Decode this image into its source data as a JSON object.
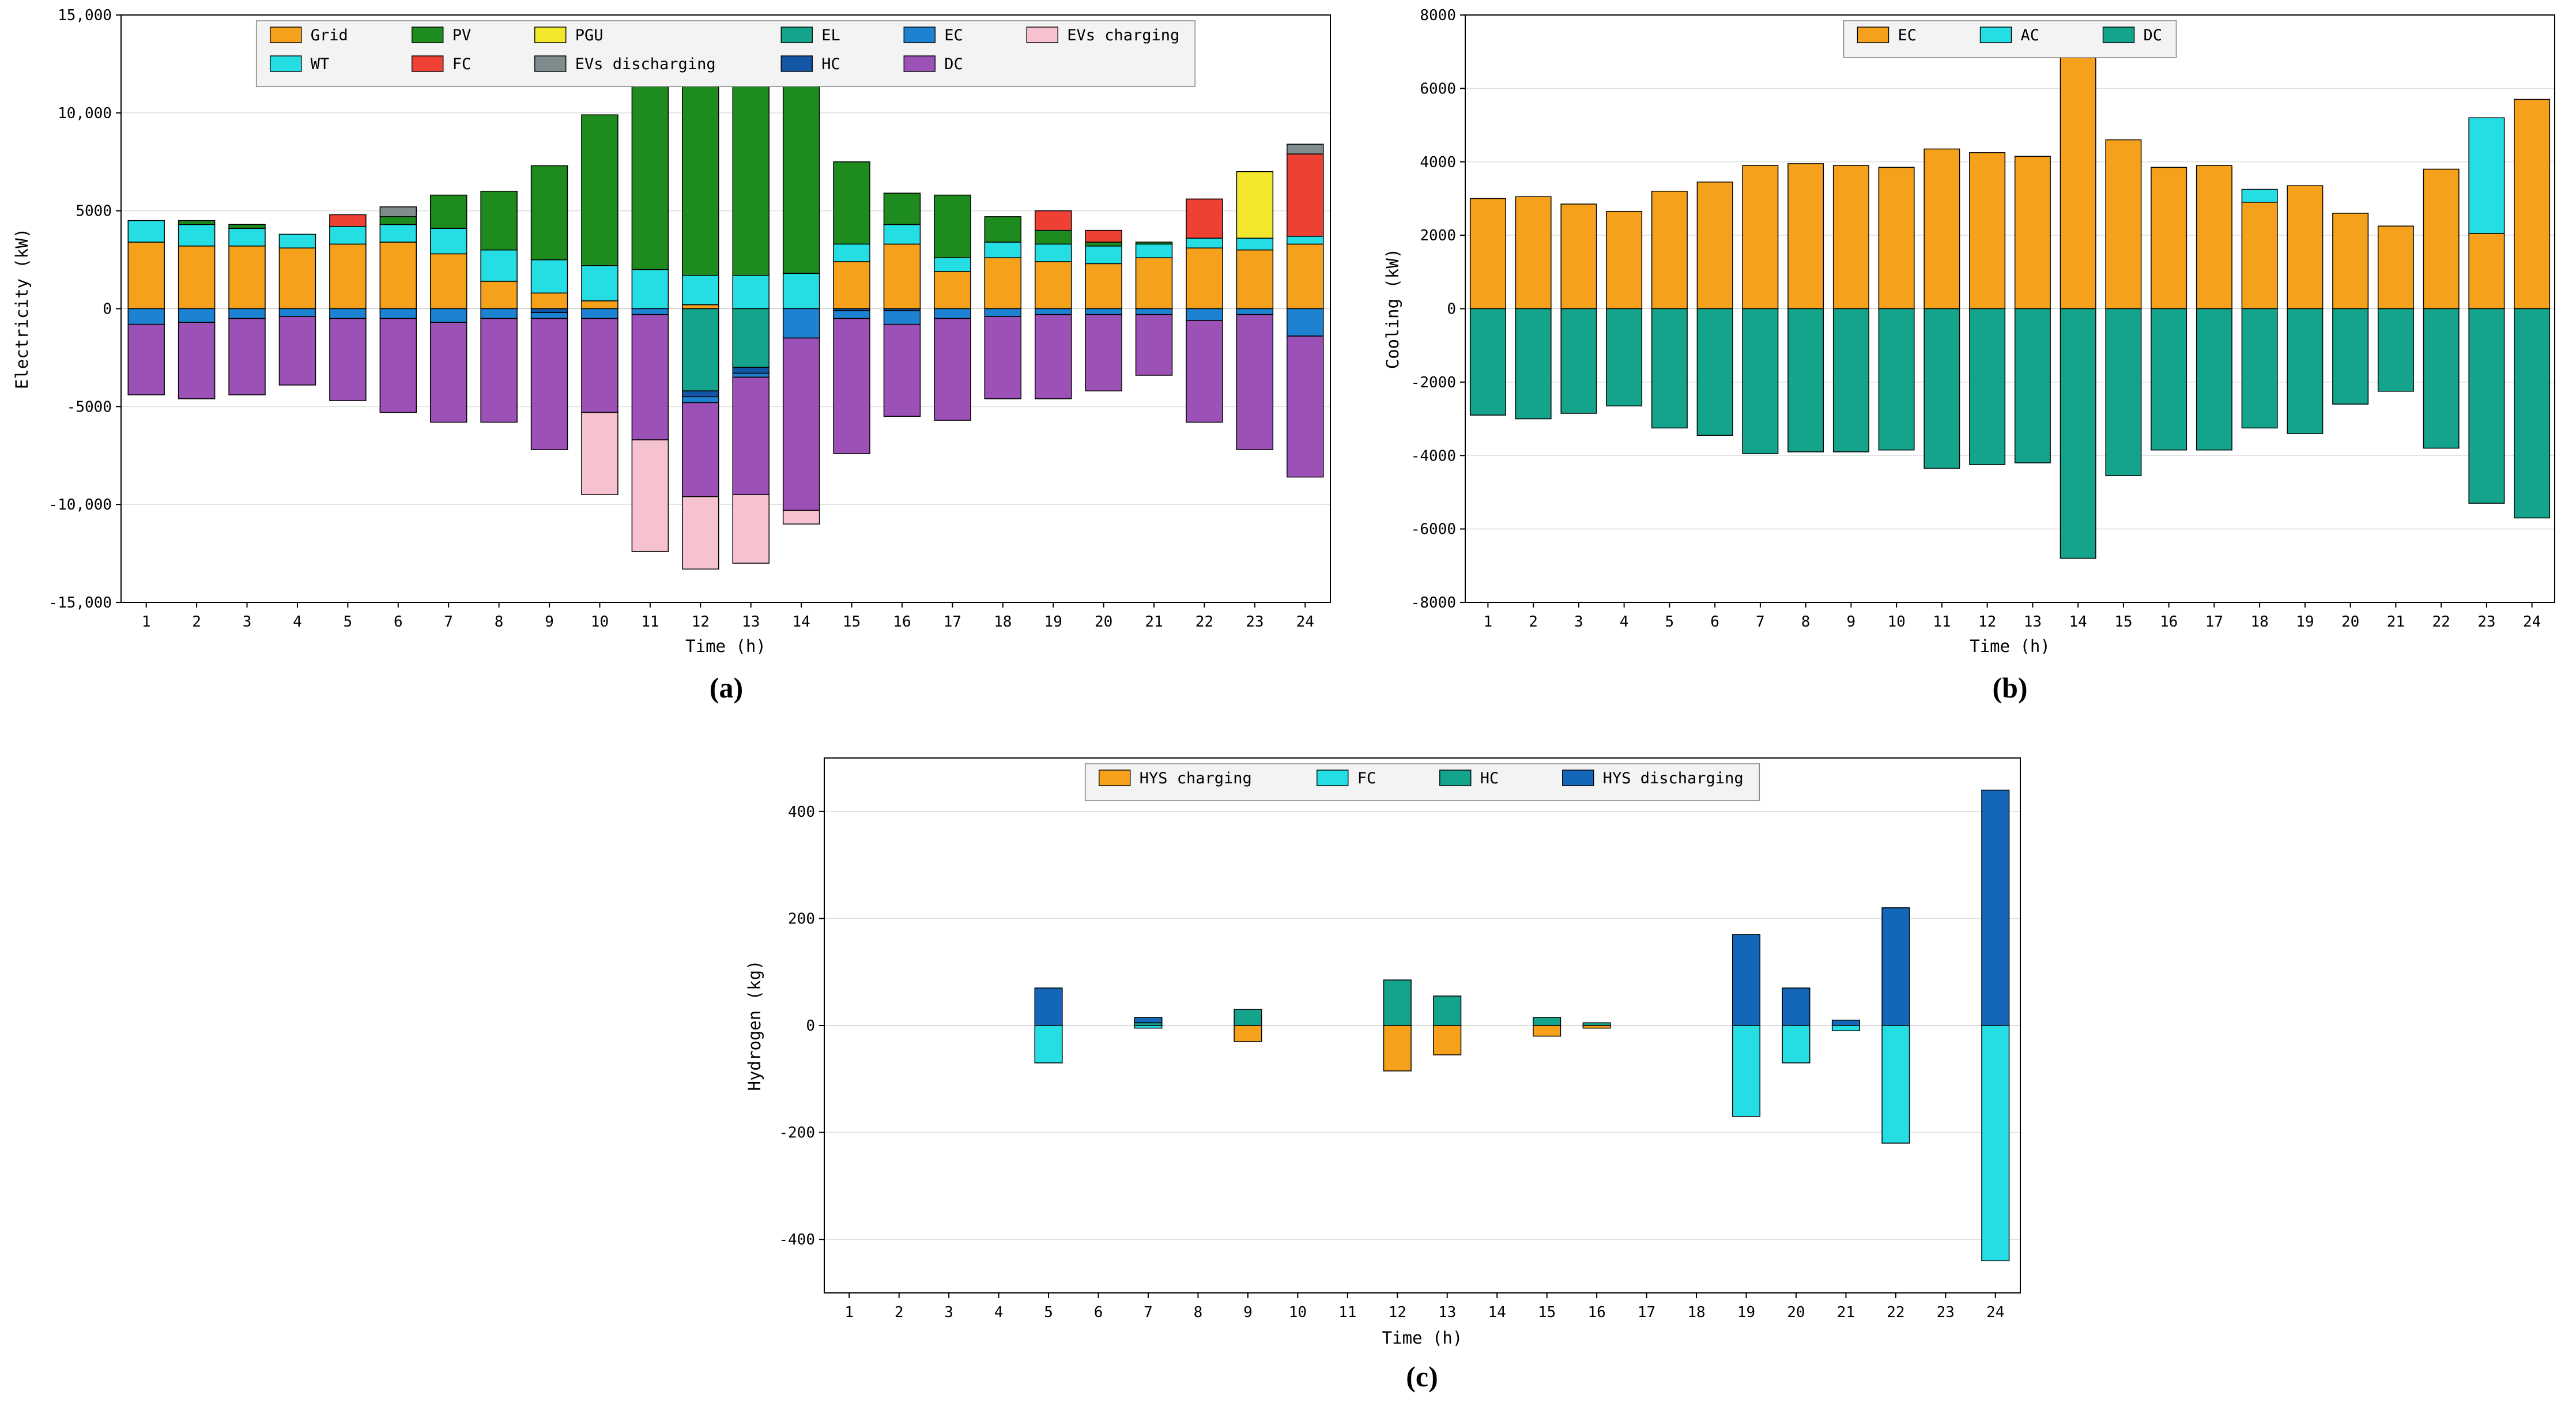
{
  "page": {
    "background": "#FFFFFF",
    "panel_labels": {
      "a": "(a)",
      "b": "(b)",
      "c": "(c)"
    }
  },
  "chart_data": [
    {
      "id": "a",
      "type": "bar",
      "stacked": true,
      "title": "",
      "xlabel": "Time (h)",
      "ylabel": "Electricity (kW)",
      "ylim": [
        -15000,
        15000
      ],
      "grid": true,
      "legend_position": "top-center-inside",
      "yticks": [
        {
          "v": -15000,
          "label": "-15,000"
        },
        {
          "v": -10000,
          "label": "-10,000"
        },
        {
          "v": -5000,
          "label": "-5000"
        },
        {
          "v": 0,
          "label": "0"
        },
        {
          "v": 5000,
          "label": "5000"
        },
        {
          "v": 10000,
          "label": "10,000"
        },
        {
          "v": 15000,
          "label": "15,000"
        }
      ],
      "categories": [
        1,
        2,
        3,
        4,
        5,
        6,
        7,
        8,
        9,
        10,
        11,
        12,
        13,
        14,
        15,
        16,
        17,
        18,
        19,
        20,
        21,
        22,
        23,
        24
      ],
      "legend_rows": [
        [
          "Grid",
          "PV",
          "PGU",
          "EL",
          "EC",
          "EVs charging"
        ],
        [
          "WT",
          "FC",
          "EVs discharging",
          "HC",
          "DC"
        ]
      ],
      "series": [
        {
          "name": "Grid",
          "color": "#F5A11B",
          "values": [
            3400,
            3200,
            3200,
            3100,
            3300,
            3400,
            2800,
            1400,
            800,
            400,
            0,
            200,
            0,
            0,
            2400,
            3300,
            1900,
            2600,
            2400,
            2300,
            2600,
            3100,
            3000,
            3300
          ]
        },
        {
          "name": "WT",
          "color": "#25DEE4",
          "values": [
            1100,
            1100,
            900,
            700,
            900,
            900,
            1300,
            1600,
            1700,
            1800,
            2000,
            1500,
            1700,
            1800,
            900,
            1000,
            700,
            800,
            900,
            900,
            700,
            500,
            600,
            400
          ]
        },
        {
          "name": "PV",
          "color": "#1D8B1D",
          "values": [
            0,
            200,
            200,
            0,
            0,
            400,
            1700,
            3000,
            4800,
            7700,
            10300,
            11700,
            11400,
            9900,
            4200,
            1600,
            3200,
            1300,
            700,
            200,
            100,
            0,
            0,
            0
          ]
        },
        {
          "name": "FC",
          "color": "#EF4034",
          "values": [
            0,
            0,
            0,
            0,
            600,
            0,
            0,
            0,
            0,
            0,
            0,
            0,
            0,
            0,
            0,
            0,
            0,
            0,
            1000,
            600,
            0,
            2000,
            0,
            4200
          ]
        },
        {
          "name": "PGU",
          "color": "#F2E72C",
          "values": [
            0,
            0,
            0,
            0,
            0,
            0,
            0,
            0,
            0,
            0,
            0,
            0,
            0,
            0,
            0,
            0,
            0,
            0,
            0,
            0,
            0,
            0,
            3400,
            0
          ]
        },
        {
          "name": "EVs discharging",
          "color": "#7E8C8D",
          "values": [
            0,
            0,
            0,
            0,
            0,
            500,
            0,
            0,
            0,
            0,
            0,
            0,
            0,
            0,
            0,
            0,
            0,
            0,
            0,
            0,
            0,
            0,
            0,
            500
          ]
        },
        {
          "name": "EL",
          "color": "#14A38B",
          "values": [
            0,
            0,
            0,
            0,
            0,
            0,
            0,
            0,
            0,
            0,
            0,
            -4200,
            -3000,
            0,
            0,
            0,
            0,
            0,
            0,
            0,
            0,
            0,
            0,
            0
          ]
        },
        {
          "name": "HC",
          "color": "#1356A6",
          "values": [
            0,
            0,
            0,
            0,
            0,
            0,
            0,
            0,
            -200,
            0,
            0,
            -300,
            -300,
            0,
            -100,
            -100,
            0,
            0,
            0,
            0,
            0,
            0,
            0,
            0
          ]
        },
        {
          "name": "EC",
          "color": "#1E82D2",
          "values": [
            -800,
            -700,
            -500,
            -400,
            -500,
            -500,
            -700,
            -500,
            -300,
            -500,
            -300,
            -300,
            -200,
            -1500,
            -400,
            -700,
            -500,
            -400,
            -300,
            -300,
            -300,
            -600,
            -300,
            -1400
          ]
        },
        {
          "name": "DC",
          "color": "#9C51B6",
          "values": [
            -3600,
            -3900,
            -3900,
            -3500,
            -4200,
            -4800,
            -5100,
            -5300,
            -6700,
            -4800,
            -6400,
            -4800,
            -6000,
            -8800,
            -6900,
            -4700,
            -5200,
            -4200,
            -4300,
            -3900,
            -3100,
            -5200,
            -6900,
            -7200
          ]
        },
        {
          "name": "EVs charging",
          "color": "#F7C2CF",
          "values": [
            0,
            0,
            0,
            0,
            0,
            0,
            0,
            0,
            0,
            -4200,
            -5700,
            -3700,
            -3500,
            -700,
            0,
            0,
            0,
            0,
            0,
            0,
            0,
            0,
            0,
            0
          ]
        }
      ]
    },
    {
      "id": "b",
      "type": "bar",
      "stacked": true,
      "title": "",
      "xlabel": "Time (h)",
      "ylabel": "Cooling (kW)",
      "ylim": [
        -8000,
        8000
      ],
      "grid": true,
      "legend_position": "top-center-inside",
      "yticks": [
        {
          "v": -8000,
          "label": "-8000"
        },
        {
          "v": -6000,
          "label": "-6000"
        },
        {
          "v": -4000,
          "label": "-4000"
        },
        {
          "v": -2000,
          "label": "-2000"
        },
        {
          "v": 0,
          "label": "0"
        },
        {
          "v": 2000,
          "label": "2000"
        },
        {
          "v": 4000,
          "label": "4000"
        },
        {
          "v": 6000,
          "label": "6000"
        },
        {
          "v": 8000,
          "label": "8000"
        }
      ],
      "categories": [
        1,
        2,
        3,
        4,
        5,
        6,
        7,
        8,
        9,
        10,
        11,
        12,
        13,
        14,
        15,
        16,
        17,
        18,
        19,
        20,
        21,
        22,
        23,
        24
      ],
      "legend_rows": [
        [
          "EC",
          "AC",
          "DC"
        ]
      ],
      "series": [
        {
          "name": "EC",
          "color": "#F5A11B",
          "values": [
            3000,
            3050,
            2850,
            2650,
            3200,
            3450,
            3900,
            3950,
            3900,
            3850,
            4350,
            4250,
            4150,
            6850,
            4600,
            3850,
            3900,
            2900,
            3350,
            2600,
            2250,
            3800,
            2050,
            5700
          ]
        },
        {
          "name": "AC",
          "color": "#25DEE4",
          "values": [
            0,
            0,
            0,
            0,
            0,
            0,
            0,
            0,
            0,
            0,
            0,
            0,
            0,
            0,
            0,
            0,
            0,
            350,
            0,
            0,
            0,
            0,
            3150,
            0
          ]
        },
        {
          "name": "DC",
          "color": "#14A38B",
          "values": [
            -2900,
            -3000,
            -2850,
            -2650,
            -3250,
            -3450,
            -3950,
            -3900,
            -3900,
            -3850,
            -4350,
            -4250,
            -4200,
            -6800,
            -4550,
            -3850,
            -3850,
            -3250,
            -3400,
            -2600,
            -2250,
            -3800,
            -5300,
            -5700
          ]
        }
      ]
    },
    {
      "id": "c",
      "type": "bar",
      "stacked": true,
      "title": "",
      "xlabel": "Time (h)",
      "ylabel": "Hydrogen (kg)",
      "ylim": [
        -500,
        500
      ],
      "grid": true,
      "legend_position": "top-center-inside",
      "yticks": [
        {
          "v": -400,
          "label": "-400"
        },
        {
          "v": -200,
          "label": "-200"
        },
        {
          "v": 0,
          "label": "0"
        },
        {
          "v": 200,
          "label": "200"
        },
        {
          "v": 400,
          "label": "400"
        }
      ],
      "categories": [
        1,
        2,
        3,
        4,
        5,
        6,
        7,
        8,
        9,
        10,
        11,
        12,
        13,
        14,
        15,
        16,
        17,
        18,
        19,
        20,
        21,
        22,
        23,
        24
      ],
      "legend_rows": [
        [
          "HYS charging",
          "FC",
          "HC",
          "HYS discharging"
        ]
      ],
      "series": [
        {
          "name": "HC",
          "color": "#14A38B",
          "values": [
            0,
            0,
            0,
            0,
            0,
            0,
            5,
            0,
            30,
            0,
            0,
            85,
            55,
            0,
            15,
            5,
            0,
            0,
            0,
            0,
            0,
            0,
            0,
            0
          ]
        },
        {
          "name": "HYS discharging",
          "color": "#1467B8",
          "values": [
            0,
            0,
            0,
            0,
            70,
            0,
            10,
            0,
            0,
            0,
            0,
            0,
            0,
            0,
            0,
            0,
            0,
            0,
            170,
            70,
            10,
            220,
            0,
            440
          ]
        },
        {
          "name": "FC",
          "color": "#25DEE4",
          "values": [
            0,
            0,
            0,
            0,
            -70,
            0,
            -5,
            0,
            0,
            0,
            0,
            0,
            0,
            0,
            0,
            0,
            0,
            0,
            -170,
            -70,
            -10,
            -220,
            0,
            -440
          ]
        },
        {
          "name": "HYS charging",
          "color": "#F5A11B",
          "values": [
            0,
            0,
            0,
            0,
            0,
            0,
            0,
            0,
            -30,
            0,
            0,
            -85,
            -55,
            0,
            -20,
            -5,
            0,
            0,
            0,
            0,
            0,
            0,
            0,
            0
          ]
        }
      ]
    }
  ]
}
